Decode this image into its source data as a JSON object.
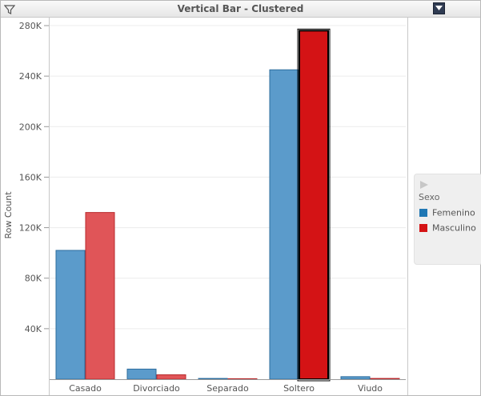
{
  "window": {
    "title": "Vertical Bar - Clustered"
  },
  "icons": {
    "filter": "filter-icon",
    "dropdown": "chevron-down-icon",
    "legend_toggle": "play-arrow-icon"
  },
  "colors": {
    "Femenino": "#5b9bcb",
    "Masculino": "#e05558",
    "Masculino_selected": "#d41315"
  },
  "legend": {
    "title": "Sexo",
    "items": [
      {
        "label": "Femenino"
      },
      {
        "label": "Masculino"
      }
    ]
  },
  "chart_data": {
    "type": "bar",
    "title": "Vertical Bar - Clustered",
    "xlabel": "",
    "ylabel": "Row Count",
    "categories": [
      "Casado",
      "Divorciado",
      "Separado",
      "Soltero",
      "Viudo"
    ],
    "series": [
      {
        "name": "Femenino",
        "values": [
          102000,
          8000,
          600,
          245000,
          2000
        ]
      },
      {
        "name": "Masculino",
        "values": [
          132000,
          3500,
          400,
          276000,
          600
        ]
      }
    ],
    "ylim": [
      0,
      284000
    ],
    "yticks": [
      40000,
      80000,
      120000,
      160000,
      200000,
      240000,
      280000
    ],
    "ytick_labels": [
      "40K",
      "80K",
      "120K",
      "160K",
      "200K",
      "240K",
      "280K"
    ],
    "grid": true,
    "legend_position": "right",
    "selected": {
      "series": "Masculino",
      "category": "Soltero"
    }
  }
}
